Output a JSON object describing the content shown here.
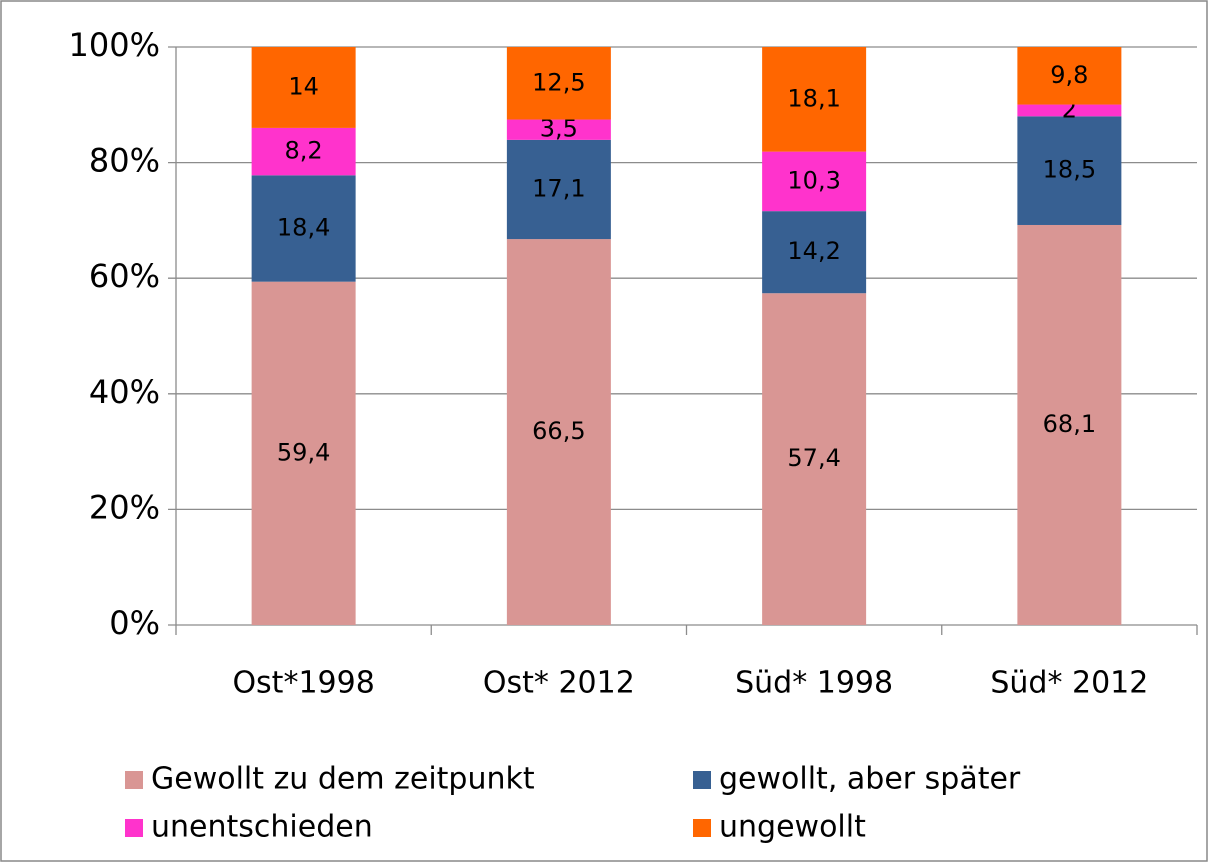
{
  "chart_data": {
    "type": "bar",
    "stacking": "percent",
    "categories": [
      "Ost*1998",
      "Ost* 2012",
      "Süd* 1998",
      "Süd* 2012"
    ],
    "series": [
      {
        "name": "Gewollt zu dem zeitpunkt",
        "color": "#d99694",
        "values": [
          59.4,
          66.5,
          57.4,
          68.1
        ],
        "value_labels": [
          "59,4",
          "66,5",
          "57,4",
          "68,1"
        ]
      },
      {
        "name": "gewollt, aber später",
        "color": "#376092",
        "values": [
          18.4,
          17.1,
          14.2,
          18.5
        ],
        "value_labels": [
          "18,4",
          "17,1",
          "14,2",
          "18,5"
        ]
      },
      {
        "name": "unentschieden",
        "color": "#ff33cc",
        "values": [
          8.2,
          3.5,
          10.3,
          2
        ],
        "value_labels": [
          "8,2",
          "3,5",
          "10,3",
          "2"
        ]
      },
      {
        "name": "ungewollt",
        "color": "#ff6600",
        "values": [
          14,
          12.5,
          18.1,
          9.8
        ],
        "value_labels": [
          "14",
          "12,5",
          "18,1",
          "9,8"
        ]
      }
    ],
    "ylim": [
      0,
      100
    ],
    "yticks": [
      {
        "value": 0,
        "label": "0%"
      },
      {
        "value": 20,
        "label": "20%"
      },
      {
        "value": 40,
        "label": "40%"
      },
      {
        "value": 60,
        "label": "60%"
      },
      {
        "value": 80,
        "label": "80%"
      },
      {
        "value": 100,
        "label": "100%"
      }
    ],
    "grid": true,
    "legend": "bottom"
  }
}
